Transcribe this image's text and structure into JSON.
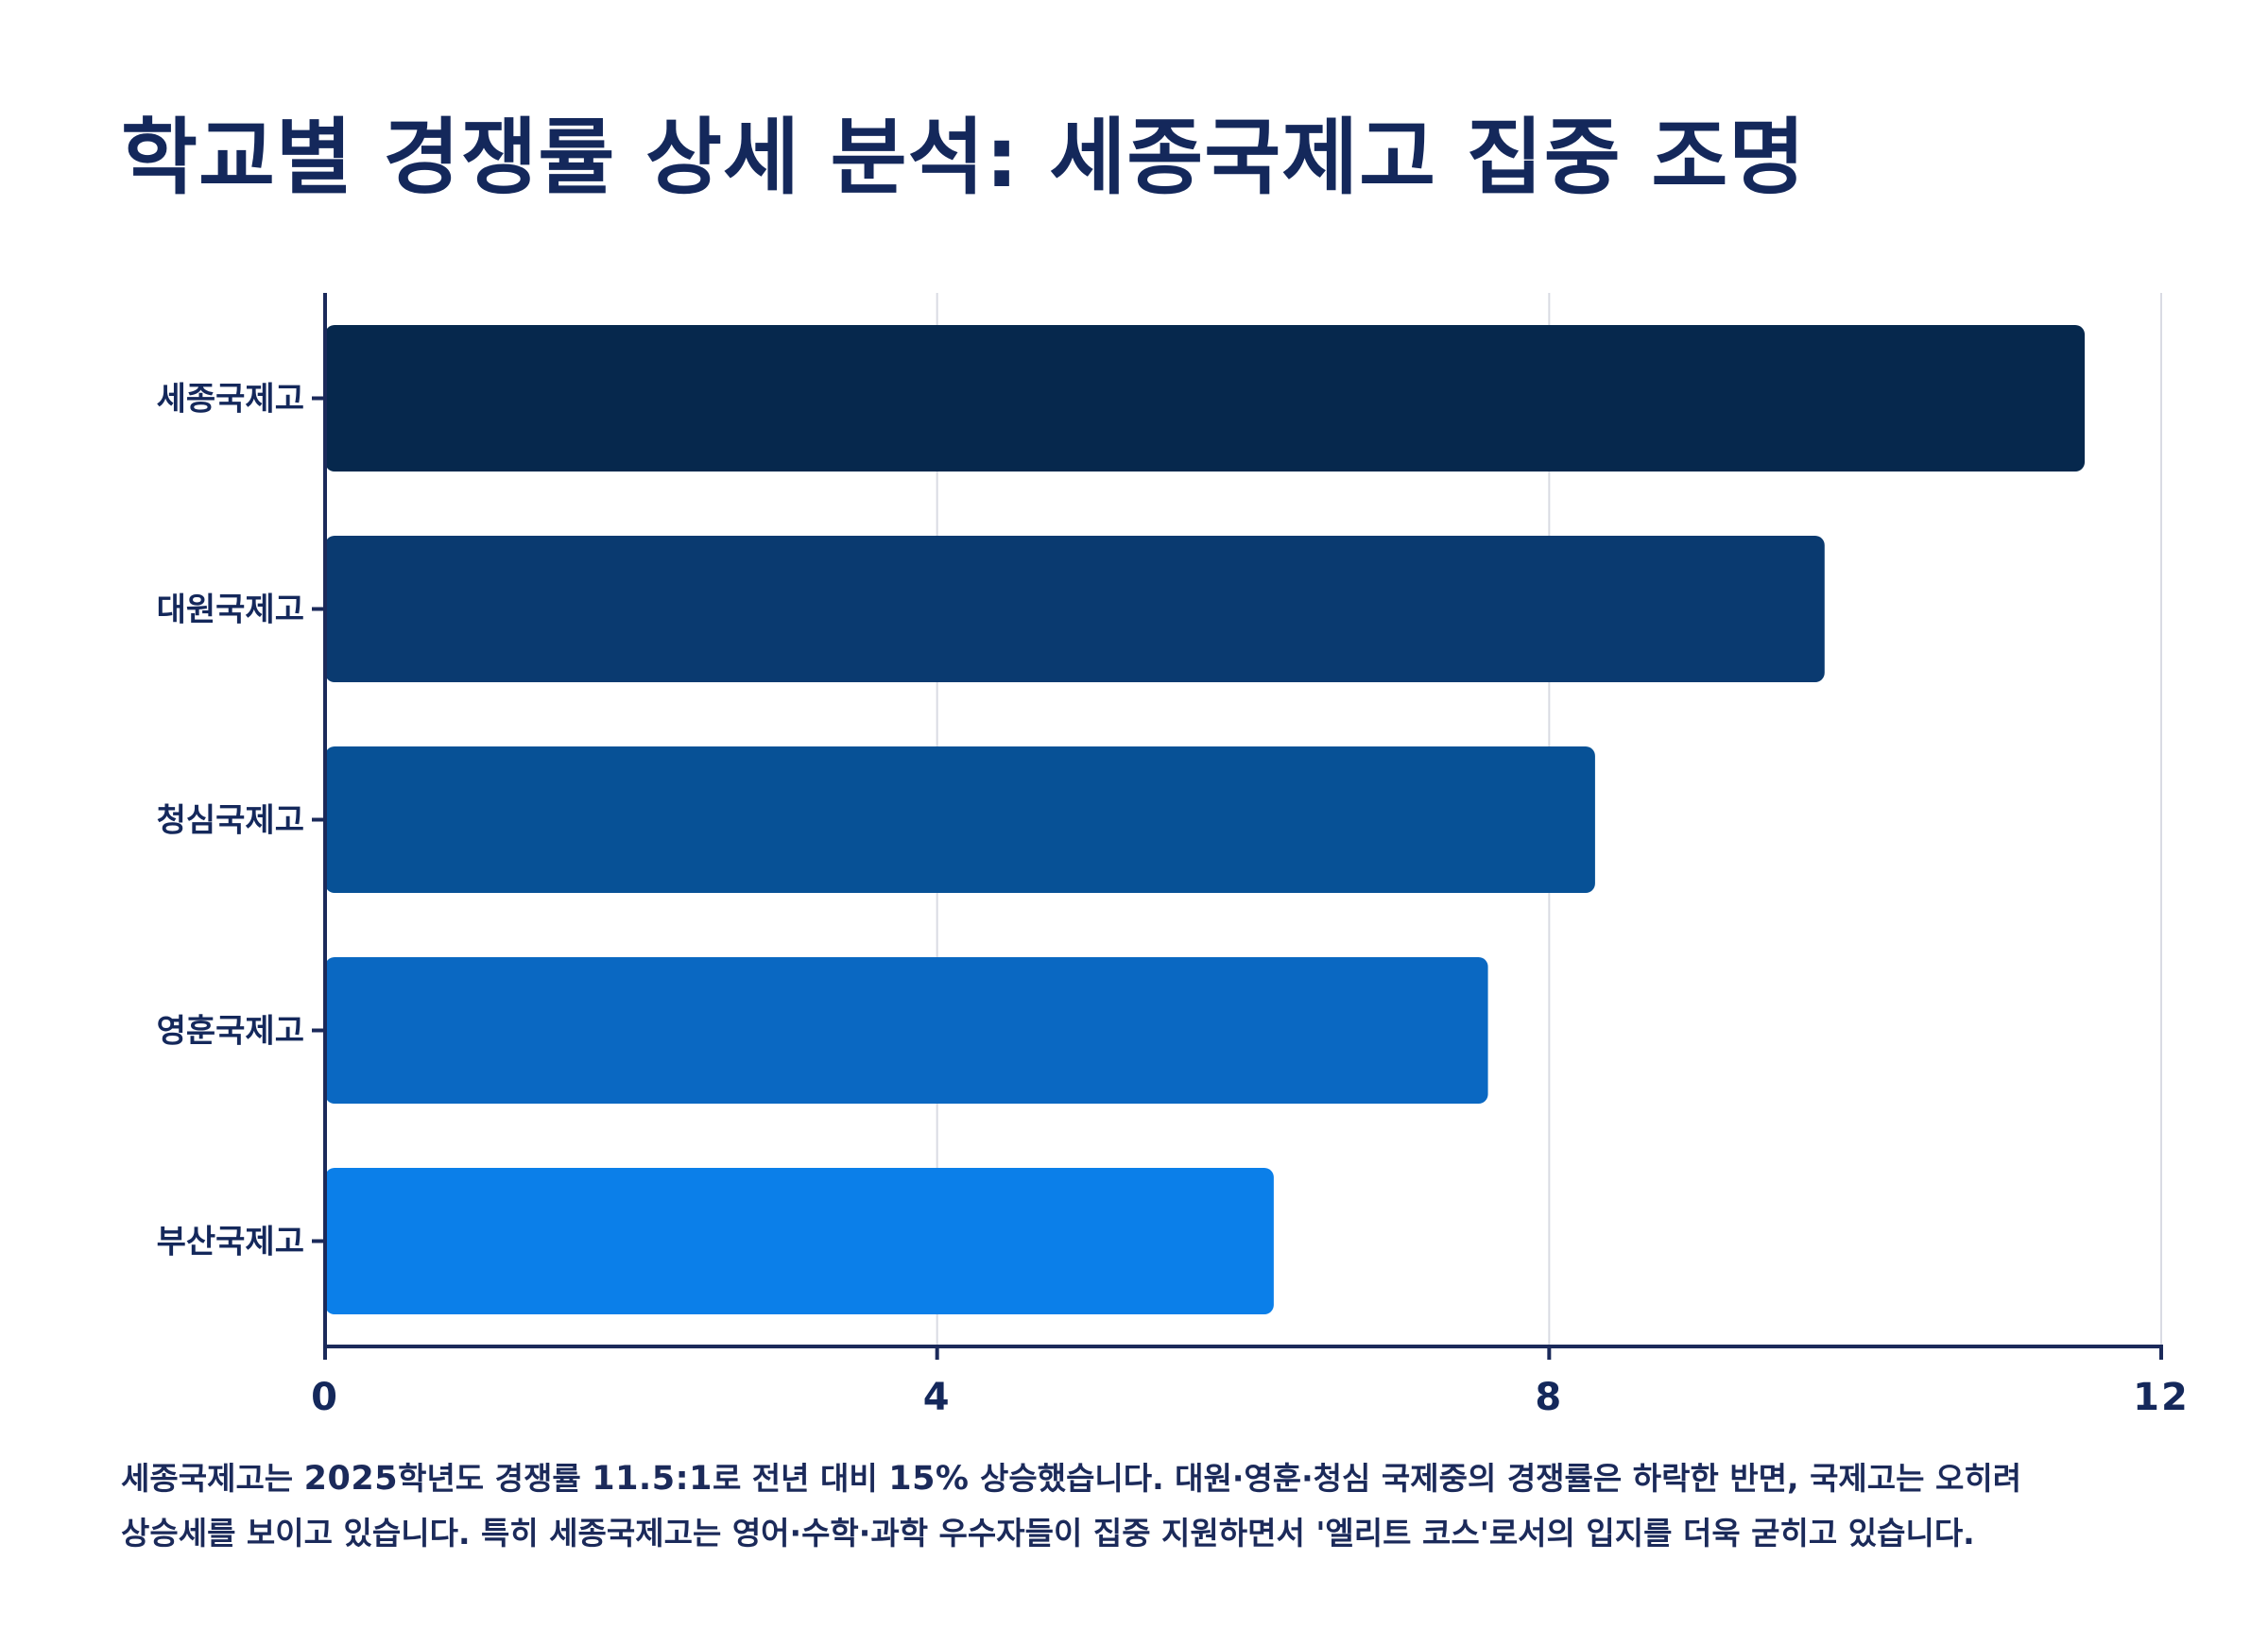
{
  "title": "학교별 경쟁률 상세 분석: 세종국제고 집중 조명",
  "chart_data": {
    "type": "bar",
    "orientation": "horizontal",
    "categories": [
      "세종국제고",
      "대원국제고",
      "청심국제고",
      "영훈국제고",
      "부산국제고"
    ],
    "values": [
      11.5,
      9.8,
      8.3,
      7.6,
      6.2
    ],
    "colors": [
      "#06284d",
      "#0a3a70",
      "#075196",
      "#0a68c2",
      "#0b7fe9"
    ],
    "xlim": [
      0,
      12
    ],
    "xticks": [
      "0",
      "4",
      "8",
      "12"
    ],
    "grid": true,
    "title": "",
    "xlabel": "",
    "ylabel": ""
  },
  "caption": {
    "line1": [
      {
        "t": "세종국제고는 "
      },
      {
        "t": "2025",
        "num": true
      },
      {
        "t": "학년도 경쟁률 "
      },
      {
        "t": "11.5:1",
        "num": true
      },
      {
        "t": "로 전년 대비 "
      },
      {
        "t": "15%",
        "num": true
      },
      {
        "t": " 상승했습니다. 대원·영훈·청심 국제중의 경쟁률은 하락한 반면, 국제고는 오히려"
      }
    ],
    "line2": [
      {
        "t": "상승세를 보이고 있습니다. 특히 세종국제고는 영어·수학·과학 우수자들이 집중 지원하면서 '엘리트 코스'로서의 입지를 더욱 굳히고 있습니다."
      }
    ]
  }
}
